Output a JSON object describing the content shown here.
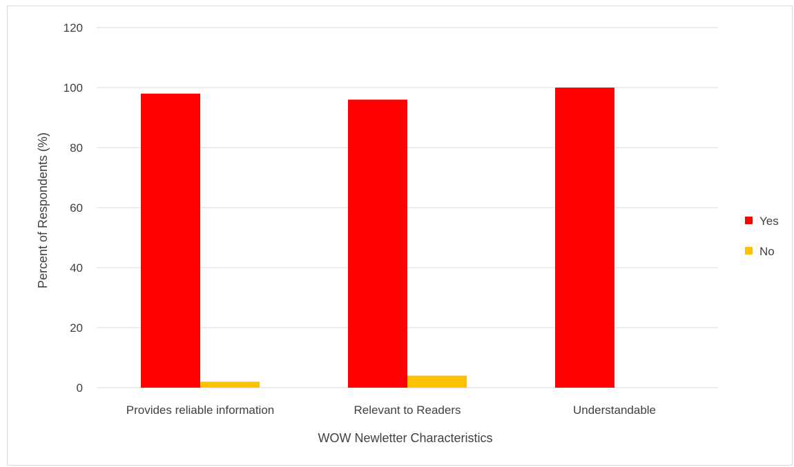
{
  "chart_data": {
    "type": "bar",
    "title": "",
    "xlabel": "WOW Newletter Characteristics",
    "ylabel": "Percent of Respondents (%)",
    "ylim": [
      0,
      120
    ],
    "yticks": [
      0,
      20,
      40,
      60,
      80,
      100,
      120
    ],
    "grid": true,
    "legend_position": "right",
    "categories": [
      "Provides reliable information",
      "Relevant to Readers",
      "Understandable"
    ],
    "series": [
      {
        "name": "Yes",
        "color": "#ff0000",
        "values": [
          98,
          96,
          100
        ]
      },
      {
        "name": "No",
        "color": "#ffc000",
        "values": [
          2,
          4,
          0
        ]
      }
    ]
  }
}
